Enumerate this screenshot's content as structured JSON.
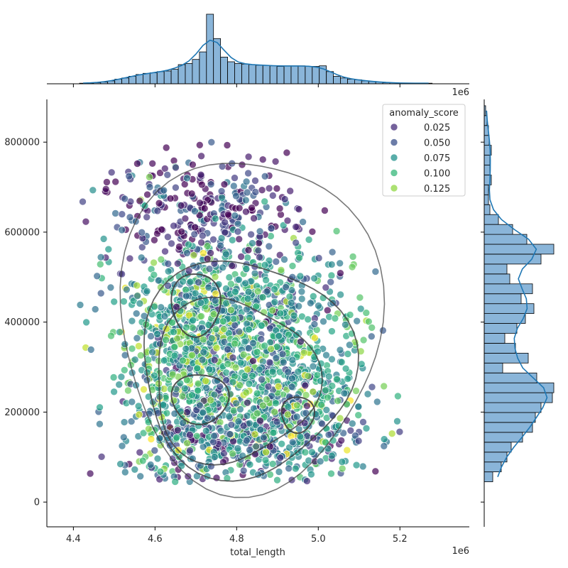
{
  "chart_data": {
    "type": "scatter",
    "title": "",
    "xlabel": "total_length",
    "ylabel": "",
    "x_offset_label": "1e6",
    "y_offset_label": "",
    "xlim": [
      4.335,
      5.37
    ],
    "ylim": [
      -55000,
      895000
    ],
    "x_scale_factor": 1000000,
    "xticks": [
      4.4,
      4.6,
      4.8,
      5.0,
      5.2
    ],
    "xtick_labels": [
      "4.4",
      "4.6",
      "4.8",
      "5.0",
      "5.2"
    ],
    "yticks": [
      0,
      200000,
      400000,
      600000,
      800000
    ],
    "ytick_labels": [
      "0",
      "200000",
      "400000",
      "600000",
      "800000"
    ],
    "grid": false,
    "colormap": "viridis",
    "legend": {
      "title": "anomaly_score",
      "placement": "top-right",
      "entries": [
        {
          "label": "0.025",
          "color": "#472d7b"
        },
        {
          "label": "0.050",
          "color": "#3b528b"
        },
        {
          "label": "0.075",
          "color": "#21918c"
        },
        {
          "label": "0.100",
          "color": "#35b779"
        },
        {
          "label": "0.125",
          "color": "#90d743"
        }
      ]
    },
    "scatter_clusters": [
      {
        "center": [
          4.7,
          300000
        ],
        "spread": [
          0.09,
          110000
        ],
        "count": 700,
        "score": 0.09
      },
      {
        "center": [
          4.92,
          270000
        ],
        "spread": [
          0.1,
          110000
        ],
        "count": 600,
        "score": 0.08
      },
      {
        "center": [
          4.7,
          650000
        ],
        "spread": [
          0.12,
          60000
        ],
        "count": 300,
        "score": 0.02
      },
      {
        "center": [
          4.8,
          140000
        ],
        "spread": [
          0.14,
          60000
        ],
        "count": 400,
        "score": 0.05
      },
      {
        "center": [
          4.78,
          450000
        ],
        "spread": [
          0.13,
          70000
        ],
        "count": 400,
        "score": 0.07
      }
    ],
    "top_histogram": {
      "bin_start": 4.415,
      "bin_width": 0.01728,
      "counts": [
        1,
        1,
        2,
        3,
        5,
        8,
        10,
        13,
        16,
        18,
        19,
        21,
        22,
        25,
        33,
        35,
        42,
        55,
        120,
        78,
        46,
        38,
        35,
        34,
        33,
        32,
        32,
        31,
        30,
        31,
        31,
        31,
        30,
        30,
        31,
        21,
        13,
        10,
        8,
        7,
        5,
        4,
        3,
        2,
        2,
        1,
        1,
        1,
        1,
        1
      ],
      "kde_color": "#1f77b4",
      "bar_color": "#8ab5d9"
    },
    "right_histogram": {
      "bin_start": 45000,
      "bin_width": 22000,
      "counts": [
        12,
        24,
        32,
        38,
        54,
        68,
        72,
        80,
        96,
        98,
        74,
        26,
        62,
        44,
        29,
        46,
        58,
        70,
        52,
        68,
        36,
        32,
        80,
        98,
        60,
        40,
        20,
        8,
        6,
        6,
        10,
        8,
        8,
        10,
        7,
        6,
        4,
        2
      ],
      "kde_color": "#1f77b4",
      "bar_color": "#8ab5d9"
    },
    "kde_contour_color": "#404040"
  }
}
